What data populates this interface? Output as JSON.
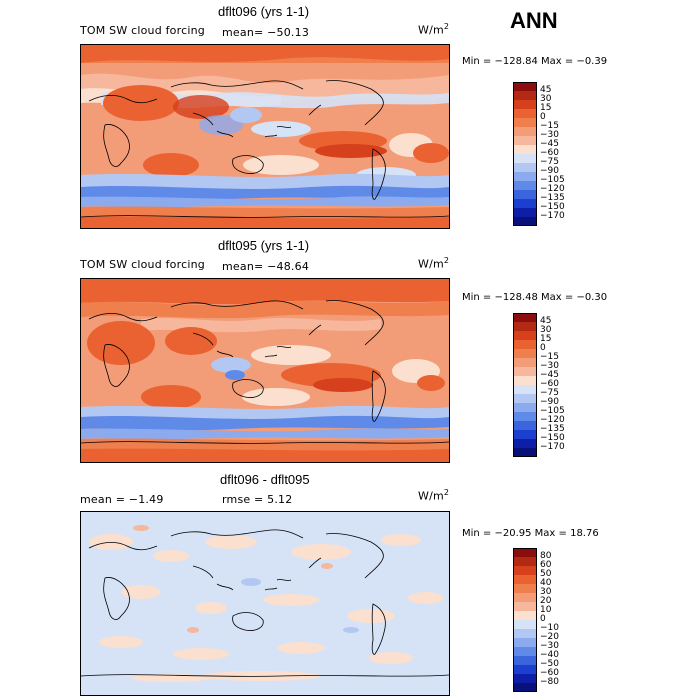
{
  "season": "ANN",
  "units": {
    "base": "W/m",
    "sup": "2"
  },
  "panels": [
    {
      "title": "dflt096 (yrs 1-1)",
      "left_label": "TOM SW cloud forcing",
      "mean_text": "mean= −50.13",
      "minmax_text": "Min = −128.84  Max =   −0.39",
      "legend_levels": [
        "45",
        "30",
        "15",
        "0",
        "−15",
        "−30",
        "−45",
        "−60",
        "−75",
        "−90",
        "−105",
        "−120",
        "−135",
        "−150",
        "−170"
      ],
      "legend_colors": [
        "#8b0d0d",
        "#b32a14",
        "#d6401c",
        "#ea6232",
        "#f07f4e",
        "#f39c78",
        "#f6b79c",
        "#fbe0cf",
        "#d6e2f6",
        "#b2c8f2",
        "#8caaee",
        "#5f8ae8",
        "#3a65dc",
        "#1c3fd0",
        "#0c1fa6",
        "#08107a"
      ]
    },
    {
      "title": "dflt095 (yrs 1-1)",
      "left_label": "TOM SW cloud forcing",
      "mean_text": "mean= −48.64",
      "minmax_text": "Min = −128.48  Max =   −0.30",
      "legend_levels": [
        "45",
        "30",
        "15",
        "0",
        "−15",
        "−30",
        "−45",
        "−60",
        "−75",
        "−90",
        "−105",
        "−120",
        "−135",
        "−150",
        "−170"
      ],
      "legend_colors": [
        "#8b0d0d",
        "#b32a14",
        "#d6401c",
        "#ea6232",
        "#f07f4e",
        "#f39c78",
        "#f6b79c",
        "#fbe0cf",
        "#d6e2f6",
        "#b2c8f2",
        "#8caaee",
        "#5f8ae8",
        "#3a65dc",
        "#1c3fd0",
        "#0c1fa6",
        "#08107a"
      ]
    },
    {
      "title": "dflt096 - dflt095",
      "left_label": "mean =    −1.49",
      "rmse_text": "rmse =    5.12",
      "minmax_text": "Min = −20.95 Max =  18.76",
      "legend_levels": [
        "80",
        "60",
        "50",
        "40",
        "30",
        "20",
        "10",
        "0",
        "−10",
        "−20",
        "−30",
        "−40",
        "−50",
        "−60",
        "−80"
      ],
      "legend_colors": [
        "#8b0d0d",
        "#b32a14",
        "#d6401c",
        "#ea6232",
        "#f07f4e",
        "#f39c78",
        "#f6b79c",
        "#fbe0cf",
        "#d6e2f6",
        "#b2c8f2",
        "#8caaee",
        "#5f8ae8",
        "#3a65dc",
        "#1c3fd0",
        "#0c1fa6",
        "#08107a"
      ]
    }
  ],
  "chart_data": [
    {
      "type": "heatmap",
      "title": "dflt096 (yrs 1-1)",
      "variable": "TOM SW cloud forcing",
      "units": "W/m2",
      "mean": -50.13,
      "min": -128.84,
      "max": -0.39,
      "contour_levels": [
        45,
        30,
        15,
        0,
        -15,
        -30,
        -45,
        -60,
        -75,
        -90,
        -105,
        -120,
        -135,
        -150,
        -170
      ]
    },
    {
      "type": "heatmap",
      "title": "dflt095 (yrs 1-1)",
      "variable": "TOM SW cloud forcing",
      "units": "W/m2",
      "mean": -48.64,
      "min": -128.48,
      "max": -0.3,
      "contour_levels": [
        45,
        30,
        15,
        0,
        -15,
        -30,
        -45,
        -60,
        -75,
        -90,
        -105,
        -120,
        -135,
        -150,
        -170
      ]
    },
    {
      "type": "heatmap",
      "title": "dflt096 - dflt095",
      "units": "W/m2",
      "mean": -1.49,
      "rmse": 5.12,
      "min": -20.95,
      "max": 18.76,
      "contour_levels": [
        80,
        60,
        50,
        40,
        30,
        20,
        10,
        0,
        -10,
        -20,
        -30,
        -40,
        -50,
        -60,
        -80
      ]
    }
  ]
}
